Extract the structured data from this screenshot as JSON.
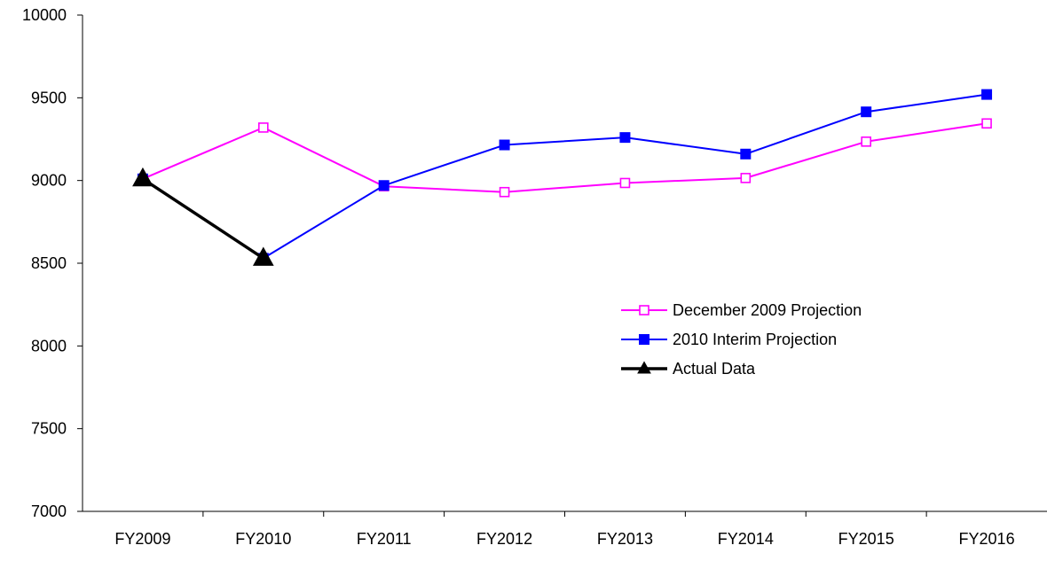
{
  "chart_data": {
    "type": "line",
    "title": "",
    "xlabel": "",
    "ylabel": "",
    "categories": [
      "FY2009",
      "FY2010",
      "FY2011",
      "FY2012",
      "FY2013",
      "FY2014",
      "FY2015",
      "FY2016"
    ],
    "ylim": [
      7000,
      10000
    ],
    "yticks": [
      7000,
      7500,
      8000,
      8500,
      9000,
      9500,
      10000
    ],
    "grid": false,
    "legend_position": "right-center",
    "series": [
      {
        "name": "December 2009 Projection",
        "color": "#ff00ff",
        "marker": "open-square",
        "values": [
          9010,
          9320,
          8965,
          8930,
          8985,
          9015,
          9235,
          9345
        ]
      },
      {
        "name": "2010 Interim Projection",
        "color": "#0000ff",
        "marker": "filled-square",
        "values": [
          9010,
          8530,
          8970,
          9215,
          9260,
          9160,
          9415,
          9520
        ]
      },
      {
        "name": "Actual Data",
        "color": "#000000",
        "marker": "filled-triangle",
        "values": [
          9010,
          8530,
          null,
          null,
          null,
          null,
          null,
          null
        ]
      }
    ]
  }
}
